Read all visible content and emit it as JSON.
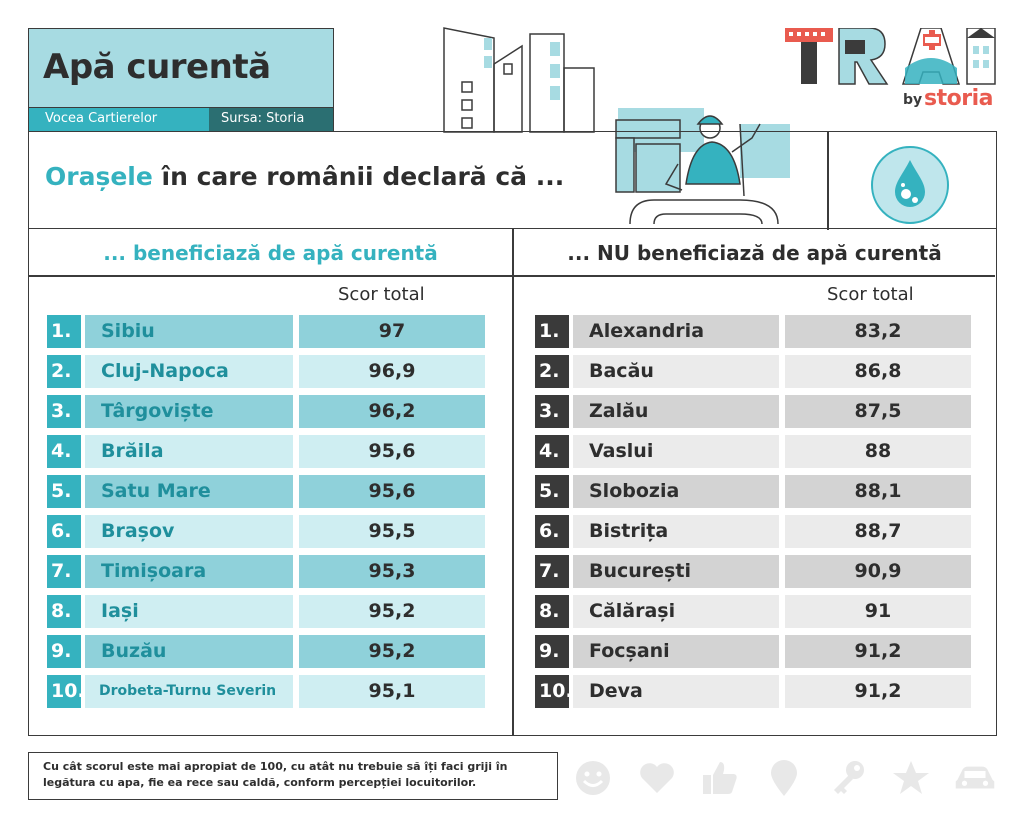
{
  "header": {
    "title": "Apă curentă",
    "tag_left": "Vocea Cartierelor",
    "tag_right": "Sursa: Storia"
  },
  "logo": {
    "wordmark": "TRAI",
    "by": "by",
    "brand": "storia"
  },
  "subtitle": {
    "accent": "Orașele",
    "rest": " în care românii declară că ..."
  },
  "left_column": {
    "header": "... beneficiază de apă curentă",
    "score_label": "Scor total",
    "rows": [
      {
        "rank": "1.",
        "city": "Sibiu",
        "score": "97"
      },
      {
        "rank": "2.",
        "city": "Cluj-Napoca",
        "score": "96,9"
      },
      {
        "rank": "3.",
        "city": "Târgoviște",
        "score": "96,2"
      },
      {
        "rank": "4.",
        "city": "Brăila",
        "score": "95,6"
      },
      {
        "rank": "5.",
        "city": "Satu Mare",
        "score": "95,6"
      },
      {
        "rank": "6.",
        "city": "Brașov",
        "score": "95,5"
      },
      {
        "rank": "7.",
        "city": "Timișoara",
        "score": "95,3"
      },
      {
        "rank": "8.",
        "city": "Iași",
        "score": "95,2"
      },
      {
        "rank": "9.",
        "city": "Buzău",
        "score": "95,2"
      },
      {
        "rank": "10.",
        "city": "Drobeta-Turnu Severin",
        "score": "95,1"
      }
    ]
  },
  "right_column": {
    "header": "... NU beneficiază de apă curentă",
    "score_label": "Scor total",
    "rows": [
      {
        "rank": "1.",
        "city": "Alexandria",
        "score": "83,2"
      },
      {
        "rank": "2.",
        "city": "Bacău",
        "score": "86,8"
      },
      {
        "rank": "3.",
        "city": "Zalău",
        "score": "87,5"
      },
      {
        "rank": "4.",
        "city": "Vaslui",
        "score": "88"
      },
      {
        "rank": "5.",
        "city": "Slobozia",
        "score": "88,1"
      },
      {
        "rank": "6.",
        "city": "Bistrița",
        "score": "88,7"
      },
      {
        "rank": "7.",
        "city": "București",
        "score": "90,9"
      },
      {
        "rank": "8.",
        "city": "Călărași",
        "score": "91"
      },
      {
        "rank": "9.",
        "city": "Focșani",
        "score": "91,2"
      },
      {
        "rank": "10.",
        "city": "Deva",
        "score": "91,2"
      }
    ]
  },
  "footnote": {
    "line1": "Cu cât scorul este mai apropiat de 100, cu atât nu trebuie să îți faci griji în",
    "line2": "legătura cu apa, fie ea rece sau caldă, conform percepției locuitorilor."
  },
  "footer_icons": [
    "smiley-icon",
    "heart-icon",
    "thumbs-up-icon",
    "location-pin-icon",
    "key-icon",
    "star-icon",
    "car-icon"
  ],
  "colors": {
    "teal": "#35b2bf",
    "light_teal": "#a7dbe2",
    "dark_teal": "#2b6f72",
    "dark_gray": "#3a3a3a",
    "coral": "#e95b4f"
  }
}
